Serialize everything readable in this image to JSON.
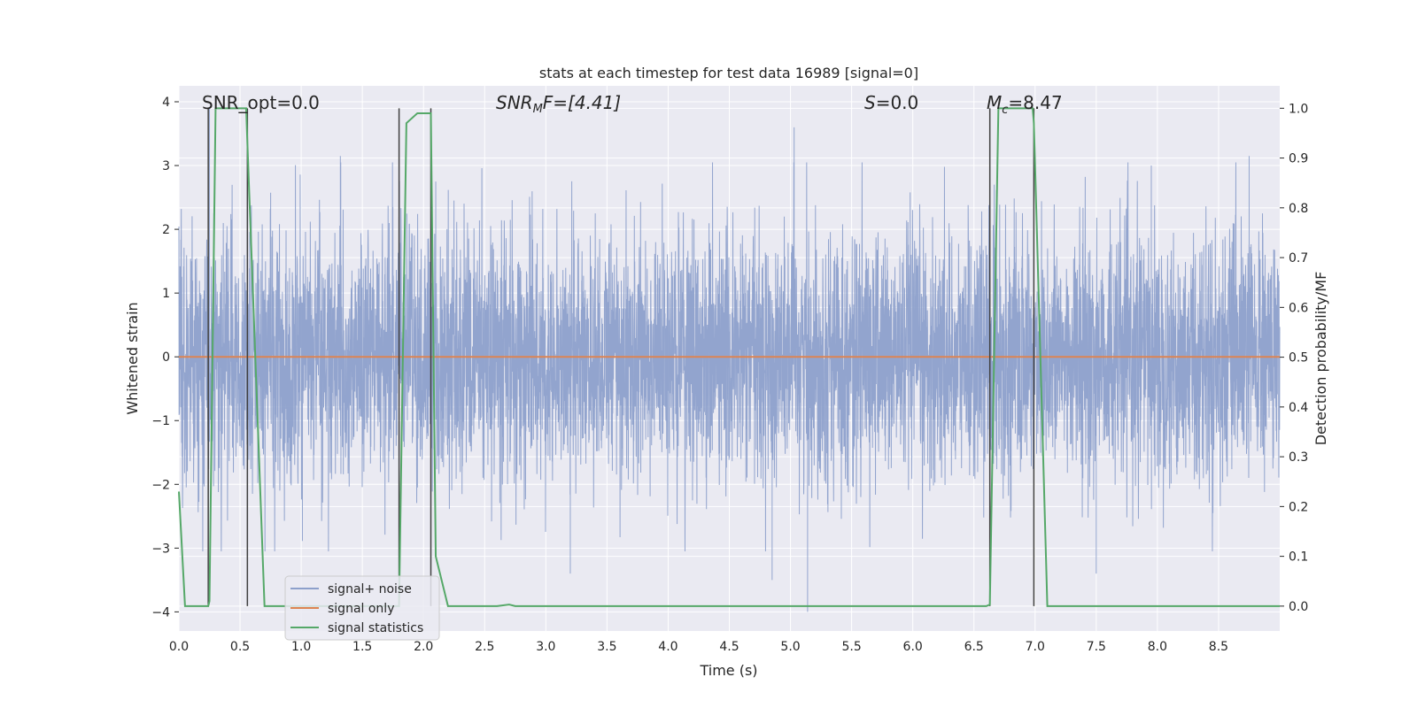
{
  "chart_data": {
    "type": "line",
    "title": "stats at each timestep for test data 16989 [signal=0]",
    "xlabel": "Time (s)",
    "ylabel": "Whitened strain",
    "y2label": "Detection probability/MF",
    "xlim": [
      0.0,
      9.0
    ],
    "ylim": [
      -4.3,
      4.25
    ],
    "y2lim": [
      -0.05,
      1.045
    ],
    "xticks": [
      "0.0",
      "0.5",
      "1.0",
      "1.5",
      "2.0",
      "2.5",
      "3.0",
      "3.5",
      "4.0",
      "4.5",
      "5.0",
      "5.5",
      "6.0",
      "6.5",
      "7.0",
      "7.5",
      "8.0",
      "8.5"
    ],
    "yticks": [
      "−4",
      "−3",
      "−2",
      "−1",
      "0",
      "1",
      "2",
      "3",
      "4"
    ],
    "y2ticks": [
      "0.0",
      "0.1",
      "0.2",
      "0.3",
      "0.4",
      "0.5",
      "0.6",
      "0.7",
      "0.8",
      "0.9",
      "1.0"
    ],
    "grid": true,
    "legend_position": "lower-left",
    "annotations": {
      "snr_opt": "SNR_opt=0.0",
      "snr_mf_sym": "SNR",
      "snr_mf_sub": "M",
      "snr_mf_rest": "F=[4.41]",
      "s_sym": "S",
      "s_rest": "=0.0",
      "mc_sym": "M",
      "mc_sub": "c",
      "mc_rest": "=8.47"
    },
    "series": [
      {
        "name": "signal+ noise",
        "color": "#8da0cb",
        "style": "noise",
        "duration": 9.0,
        "sigma": 1.0,
        "typical_range": [
          -2.0,
          2.0
        ],
        "extreme_values": [
          {
            "t": 0.25,
            "y": 3.9
          },
          {
            "t": 0.56,
            "y": -3.2
          },
          {
            "t": 1.32,
            "y": 3.15
          },
          {
            "t": 2.1,
            "y": 2.75
          },
          {
            "t": 3.2,
            "y": -3.4
          },
          {
            "t": 4.85,
            "y": -3.5
          },
          {
            "t": 5.03,
            "y": 3.6
          },
          {
            "t": 5.14,
            "y": -4.0
          },
          {
            "t": 7.5,
            "y": -3.4
          },
          {
            "t": 7.95,
            "y": 3.0
          },
          {
            "t": 8.75,
            "y": 3.15
          }
        ]
      },
      {
        "name": "signal only",
        "color": "#dd8452",
        "style": "line",
        "x": [
          0.0,
          9.0
        ],
        "y": [
          0.0,
          0.0
        ]
      },
      {
        "name": "signal statistics",
        "color": "#55a868",
        "style": "line",
        "axis": "right",
        "x": [
          0.0,
          0.05,
          0.24,
          0.25,
          0.3,
          0.55,
          0.56,
          0.7,
          1.8,
          1.86,
          1.95,
          2.0,
          2.06,
          2.1,
          2.2,
          2.6,
          2.7,
          2.75,
          6.6,
          6.63,
          6.7,
          6.98,
          6.99,
          7.1,
          9.0
        ],
        "y": [
          0.23,
          0.0,
          0.0,
          0.01,
          1.0,
          1.0,
          0.93,
          0.0,
          0.0,
          0.97,
          0.99,
          0.99,
          0.99,
          0.1,
          0.0,
          0.0,
          0.003,
          0.0,
          0.0,
          0.003,
          1.0,
          1.0,
          0.97,
          0.0,
          0.0
        ]
      }
    ],
    "vertical_markers": [
      0.24,
      0.56,
      1.8,
      2.06,
      6.63,
      6.99
    ],
    "marker_color": "#404040"
  }
}
